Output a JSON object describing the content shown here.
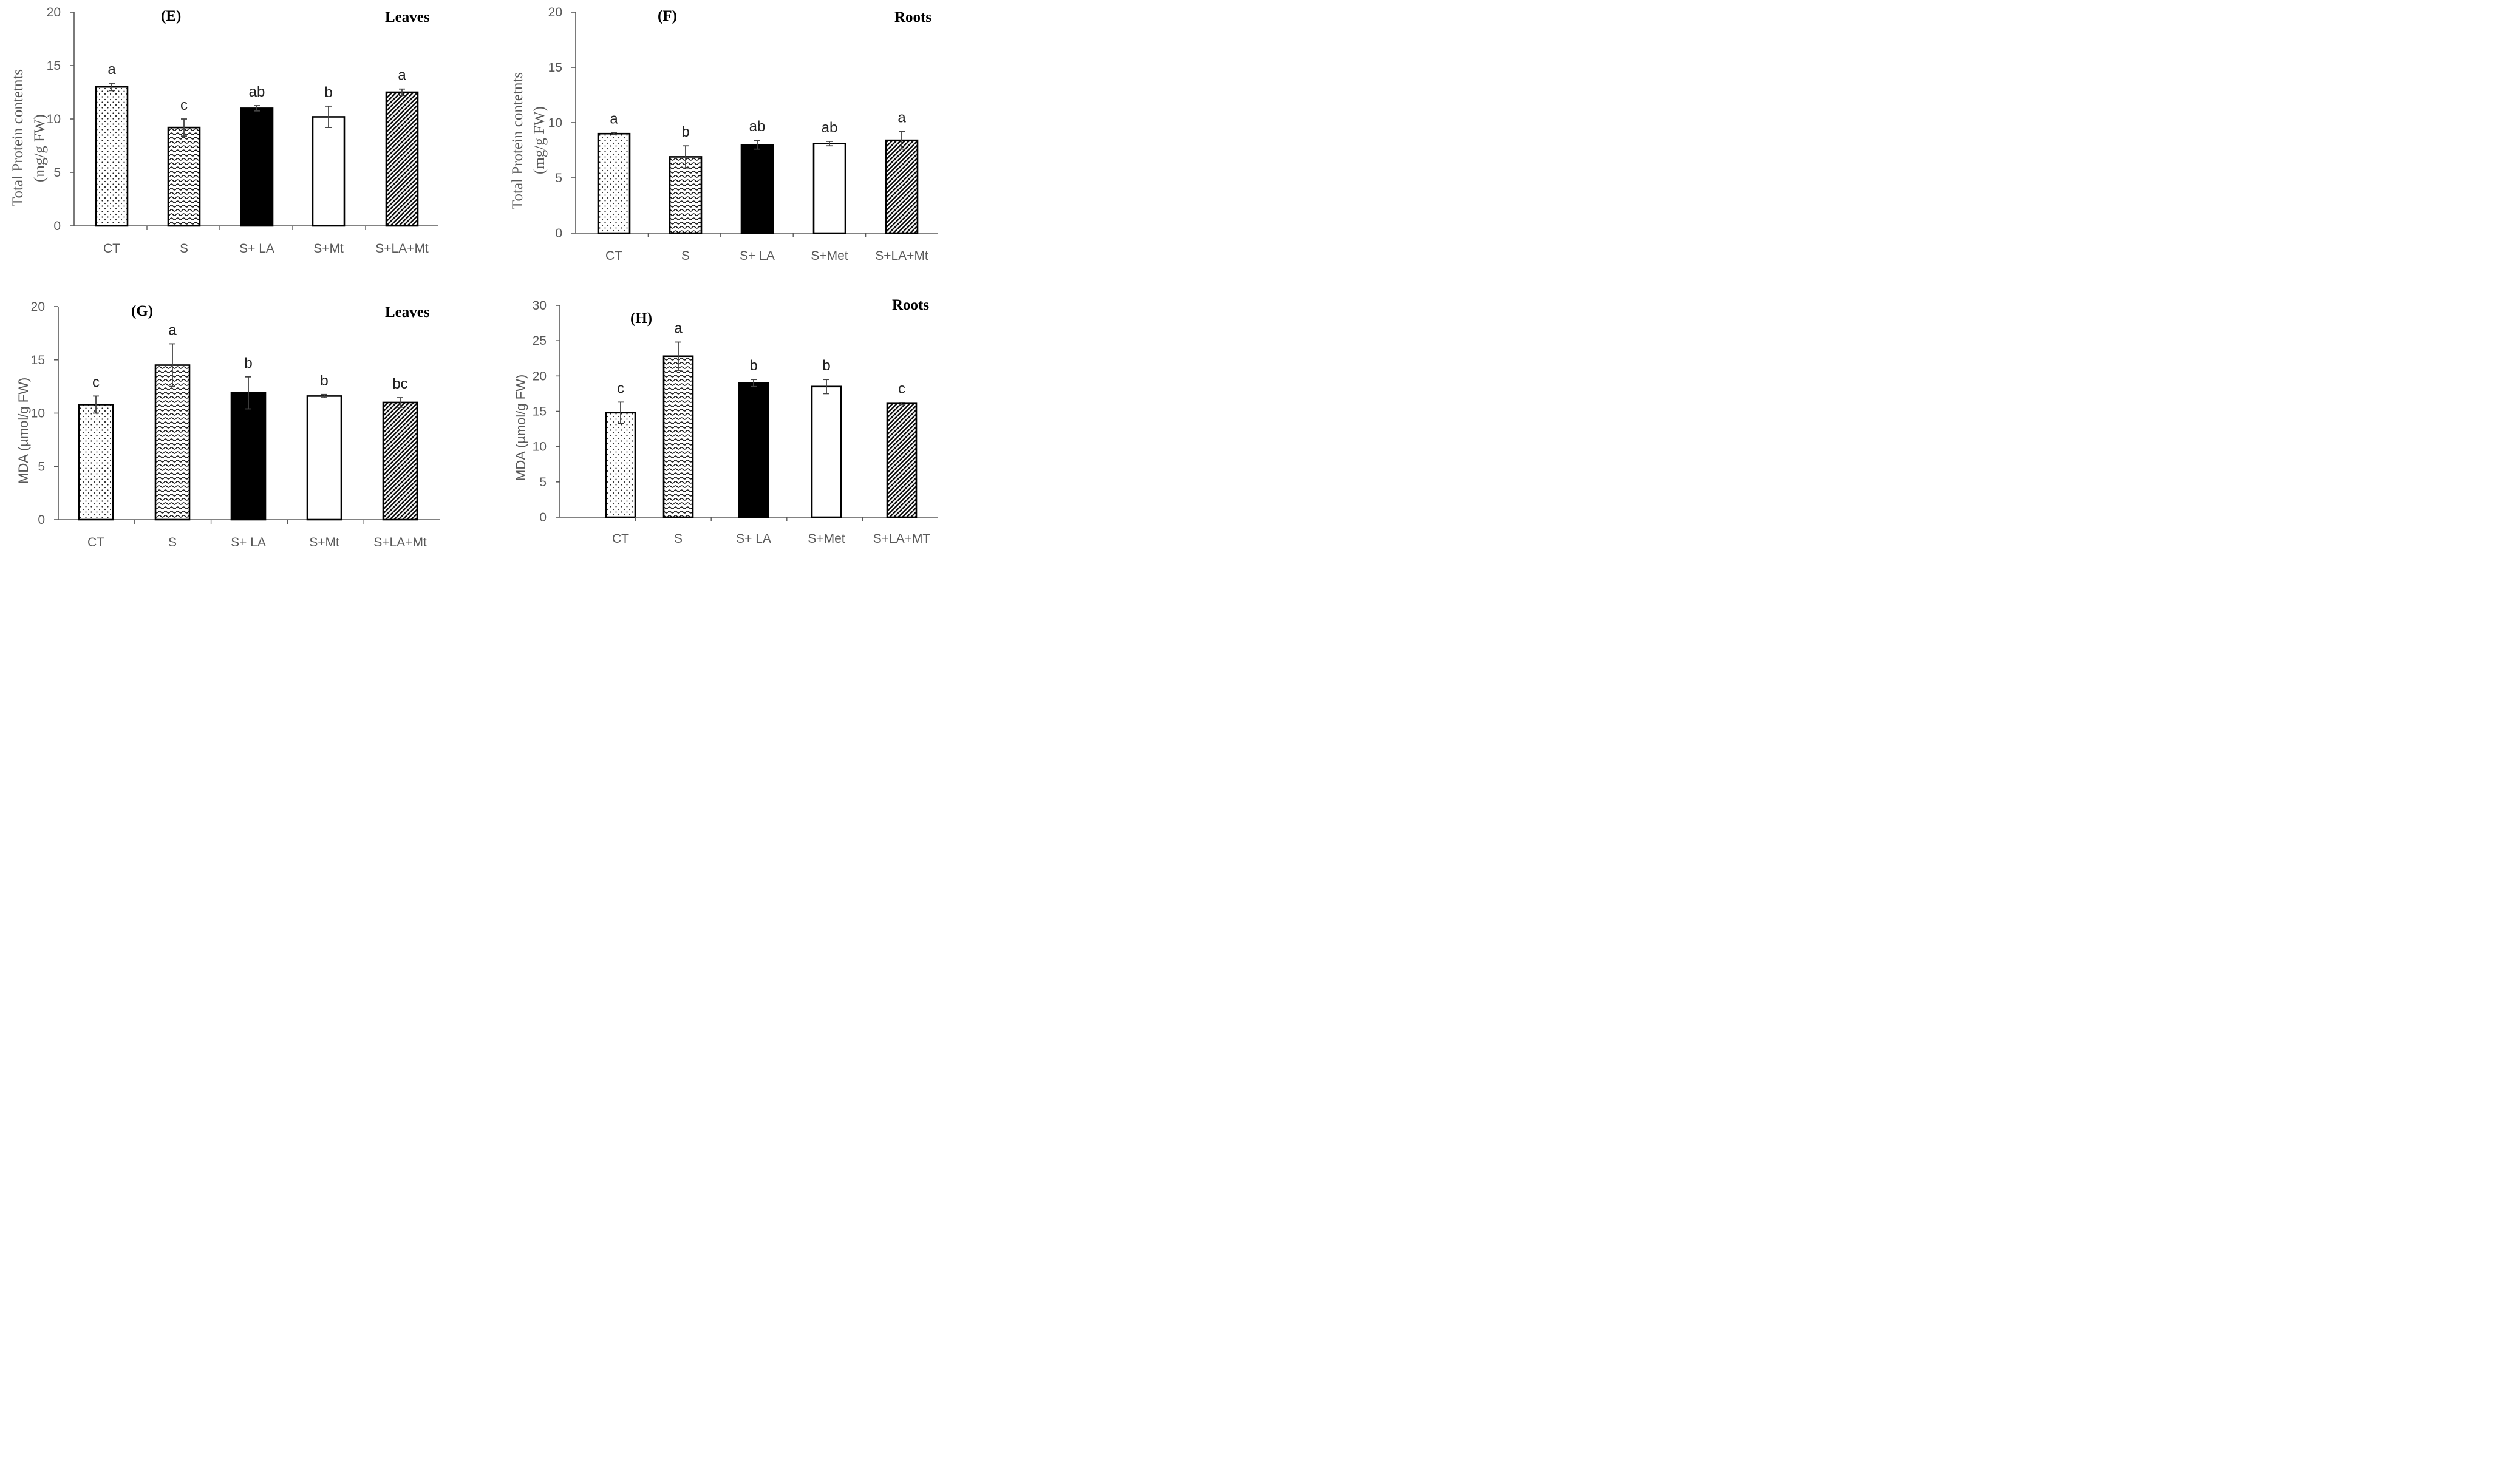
{
  "chart_data": [
    {
      "id": "E",
      "type": "bar",
      "panel_label": "(E)",
      "organ": "Leaves",
      "ylabel_lines": [
        "Total Protein contetnts",
        "(mg/g FW)"
      ],
      "ylim": [
        0,
        20
      ],
      "yticks": [
        "0",
        "5",
        "10",
        "15",
        "20"
      ],
      "categories": [
        "CT",
        "S",
        "S+ LA",
        "S+Mt",
        "S+LA+Mt"
      ],
      "values": [
        13.0,
        9.2,
        11.0,
        10.2,
        12.5
      ],
      "errors": [
        0.35,
        0.8,
        0.25,
        1.0,
        0.3
      ],
      "letters": [
        "a",
        "c",
        "ab",
        "b",
        "a"
      ],
      "patterns": [
        "dots",
        "wave",
        "solid",
        "empty",
        "diag"
      ]
    },
    {
      "id": "F",
      "type": "bar",
      "panel_label": "(F)",
      "organ": "Roots",
      "ylabel_lines": [
        "Total Protein contetnts",
        "(mg/g FW)"
      ],
      "ylim": [
        0,
        20
      ],
      "yticks": [
        "0",
        "5",
        "10",
        "15",
        "20"
      ],
      "categories": [
        "CT",
        "S",
        "S+ LA",
        "S+Met",
        "S+LA+Mt"
      ],
      "values": [
        9.0,
        6.9,
        8.0,
        8.1,
        8.4
      ],
      "errors": [
        0.1,
        1.0,
        0.4,
        0.2,
        0.8
      ],
      "letters": [
        "a",
        "b",
        "ab",
        "ab",
        "a"
      ],
      "patterns": [
        "dots",
        "wave",
        "solid",
        "empty",
        "diag"
      ]
    },
    {
      "id": "G",
      "type": "bar",
      "panel_label": "(G)",
      "organ": "Leaves",
      "ylabel_lines": [
        "MDA (µmol/g FW)"
      ],
      "ylim": [
        0,
        20
      ],
      "yticks": [
        "0",
        "5",
        "10",
        "15",
        "20"
      ],
      "categories": [
        "CT",
        "S",
        "S+ LA",
        "S+Mt",
        "S+LA+Mt"
      ],
      "values": [
        10.8,
        14.5,
        11.9,
        11.6,
        11.0
      ],
      "errors": [
        0.8,
        2.0,
        1.5,
        0.15,
        0.45
      ],
      "letters": [
        "c",
        "a",
        "b",
        "b",
        "bc"
      ],
      "patterns": [
        "dots",
        "wave",
        "solid",
        "empty",
        "diag"
      ]
    },
    {
      "id": "H",
      "type": "bar",
      "panel_label": "(H)",
      "organ": "Roots",
      "ylabel_lines": [
        "MDA (µmol/g FW)"
      ],
      "ylim": [
        0,
        30
      ],
      "yticks": [
        "0",
        "5",
        "10",
        "15",
        "20",
        "25",
        "30"
      ],
      "categories": [
        "CT",
        "S",
        "S+ LA",
        "S+Met",
        "S+LA+MT"
      ],
      "values": [
        14.8,
        22.8,
        19.0,
        18.5,
        16.1
      ],
      "errors": [
        1.5,
        2.0,
        0.5,
        1.0,
        0.15
      ],
      "letters": [
        "c",
        "a",
        "b",
        "b",
        "c"
      ],
      "patterns": [
        "dots",
        "wave",
        "solid",
        "empty",
        "diag"
      ]
    }
  ]
}
